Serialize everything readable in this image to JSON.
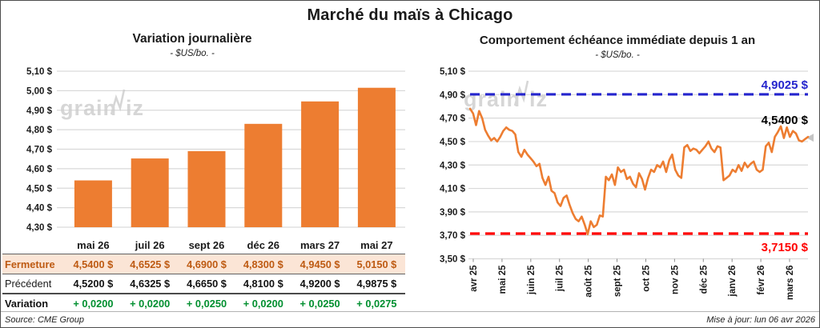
{
  "header": {
    "title": "Marché du maïs à Chicago"
  },
  "watermark": {
    "part1": "grain",
    "part2": "iz",
    "color": "#CDCDCD"
  },
  "colors": {
    "orange": "#ED7D31",
    "grid": "#D9D9D9",
    "peach_row": "#FBE5D6",
    "fermeture_text": "#BE5A12",
    "variation_green": "#008F2F",
    "high_blue": "#2525CD",
    "low_red": "#FF0000"
  },
  "chart_data": [
    {
      "type": "bar",
      "title": "Variation journalière",
      "subtitle": "- $US/bo. -",
      "categories": [
        "mai 26",
        "juil 26",
        "sept 26",
        "déc 26",
        "mars 27",
        "mai 27"
      ],
      "values": [
        4.54,
        4.6525,
        4.69,
        4.83,
        4.945,
        5.015
      ],
      "ylim": [
        4.3,
        5.1
      ],
      "yticks": [
        4.3,
        4.4,
        4.5,
        4.6,
        4.7,
        4.8,
        4.9,
        5.0,
        5.1
      ],
      "ytick_labels": [
        "4,30 $",
        "4,40 $",
        "4,50 $",
        "4,60 $",
        "4,70 $",
        "4,80 $",
        "4,90 $",
        "5,00 $",
        "5,10 $"
      ],
      "bar_color": "#ED7D31",
      "grid": true,
      "legend": "none"
    },
    {
      "type": "line",
      "title": "Comportement échéance immédiate depuis 1 an",
      "subtitle": "- $US/bo. -",
      "x_labels": [
        "avr 25",
        "mai 25",
        "juin 25",
        "juil 25",
        "août 25",
        "sept 25",
        "oct 25",
        "nov 25",
        "déc 25",
        "janv 26",
        "févr 26",
        "mars 26"
      ],
      "values": [
        4.78,
        4.74,
        4.64,
        4.76,
        4.7,
        4.6,
        4.55,
        4.51,
        4.53,
        4.5,
        4.54,
        4.59,
        4.62,
        4.6,
        4.59,
        4.56,
        4.41,
        4.37,
        4.43,
        4.39,
        4.36,
        4.33,
        4.29,
        4.31,
        4.19,
        4.13,
        4.2,
        4.08,
        4.06,
        3.98,
        3.95,
        4.02,
        4.04,
        3.96,
        3.89,
        3.84,
        3.82,
        3.86,
        3.79,
        3.71,
        3.82,
        3.77,
        3.79,
        3.87,
        3.86,
        4.2,
        4.17,
        4.22,
        4.13,
        4.28,
        4.24,
        4.26,
        4.18,
        4.2,
        4.14,
        4.11,
        4.23,
        4.18,
        4.09,
        4.19,
        4.26,
        4.24,
        4.3,
        4.28,
        4.33,
        4.24,
        4.34,
        4.39,
        4.26,
        4.21,
        4.19,
        4.45,
        4.47,
        4.42,
        4.44,
        4.43,
        4.4,
        4.43,
        4.46,
        4.5,
        4.44,
        4.41,
        4.46,
        4.45,
        4.17,
        4.19,
        4.21,
        4.26,
        4.24,
        4.3,
        4.25,
        4.32,
        4.28,
        4.31,
        4.33,
        4.26,
        4.24,
        4.26,
        4.46,
        4.49,
        4.41,
        4.54,
        4.58,
        4.63,
        4.53,
        4.62,
        4.54,
        4.59,
        4.57,
        4.51,
        4.5,
        4.52,
        4.54
      ],
      "ylim": [
        3.5,
        5.1
      ],
      "yticks": [
        3.5,
        3.7,
        3.9,
        4.1,
        4.3,
        4.5,
        4.7,
        4.9,
        5.1
      ],
      "ytick_labels": [
        "3,50 $",
        "3,70 $",
        "3,90 $",
        "4,10 $",
        "4,30 $",
        "4,50 $",
        "4,70 $",
        "4,90 $",
        "5,10 $"
      ],
      "line_color": "#ED7D31",
      "grid": true,
      "legend": "none",
      "annotations": {
        "high": {
          "value": 4.9025,
          "label": "4,9025 $",
          "color": "#2525CD"
        },
        "low": {
          "value": 3.715,
          "label": "3,7150 $",
          "color": "#FF0000"
        },
        "last": {
          "value": 4.54,
          "label": "4,5400 $",
          "color": "#000000"
        }
      }
    }
  ],
  "table": {
    "columns": [
      "mai 26",
      "juil 26",
      "sept 26",
      "déc 26",
      "mars 27",
      "mai 27"
    ],
    "rows": [
      {
        "label": "Fermeture",
        "values": [
          "4,5400 $",
          "4,6525 $",
          "4,6900 $",
          "4,8300 $",
          "4,9450 $",
          "5,0150 $"
        ]
      },
      {
        "label": "Précédent",
        "values": [
          "4,5200 $",
          "4,6325 $",
          "4,6650 $",
          "4,8100 $",
          "4,9200 $",
          "4,9875 $"
        ]
      },
      {
        "label": "Variation",
        "values": [
          "+ 0,0200",
          "+ 0,0200",
          "+ 0,0250",
          "+ 0,0200",
          "+ 0,0250",
          "+ 0,0275"
        ]
      }
    ]
  },
  "footer": {
    "source": "Source: CME Group",
    "updated": "Mise à jour: lun 06 avr 2026"
  }
}
